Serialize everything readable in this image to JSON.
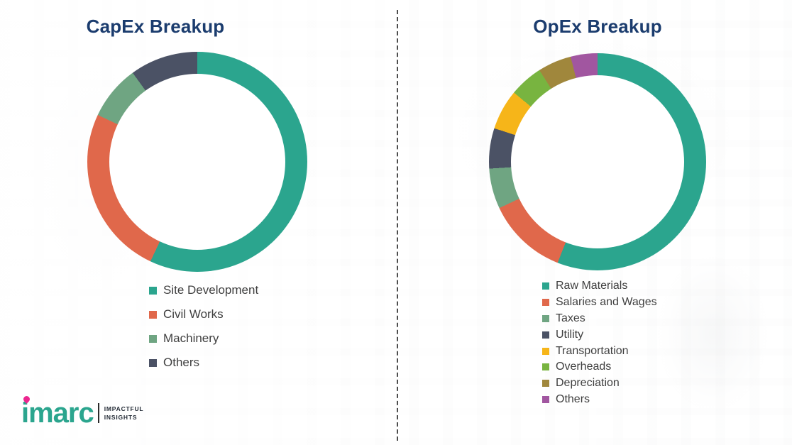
{
  "brand": {
    "logo_text": "imarc",
    "tagline_line1": "IMPACTFUL",
    "tagline_line2": "INSIGHTS",
    "logo_color": "#2ba58e",
    "accent_color": "#ec268f"
  },
  "chart_data": [
    {
      "type": "pie",
      "variant": "donut",
      "title": "CapEx Breakup",
      "legend_position": "bottom",
      "start_angle_deg": 0,
      "direction": "clockwise",
      "segments": [
        {
          "label": "Site Development",
          "value": 57,
          "color": "#2ba58e"
        },
        {
          "label": "Civil Works",
          "value": 25,
          "color": "#e0684b"
        },
        {
          "label": "Machinery",
          "value": 8,
          "color": "#6fa582"
        },
        {
          "label": "Others",
          "value": 10,
          "color": "#4b5265"
        }
      ]
    },
    {
      "type": "pie",
      "variant": "donut",
      "title": "OpEx Breakup",
      "legend_position": "bottom",
      "start_angle_deg": 0,
      "direction": "clockwise",
      "segments": [
        {
          "label": "Raw Materials",
          "value": 56,
          "color": "#2ba58e"
        },
        {
          "label": "Salaries and Wages",
          "value": 12,
          "color": "#e0684b"
        },
        {
          "label": "Taxes",
          "value": 6,
          "color": "#6fa582"
        },
        {
          "label": "Utility",
          "value": 6,
          "color": "#4b5265"
        },
        {
          "label": "Transportation",
          "value": 6,
          "color": "#f6b519"
        },
        {
          "label": "Overheads",
          "value": 5,
          "color": "#78b440"
        },
        {
          "label": "Depreciation",
          "value": 5,
          "color": "#a0873c"
        },
        {
          "label": "Others",
          "value": 4,
          "color": "#a156a0"
        }
      ]
    }
  ]
}
